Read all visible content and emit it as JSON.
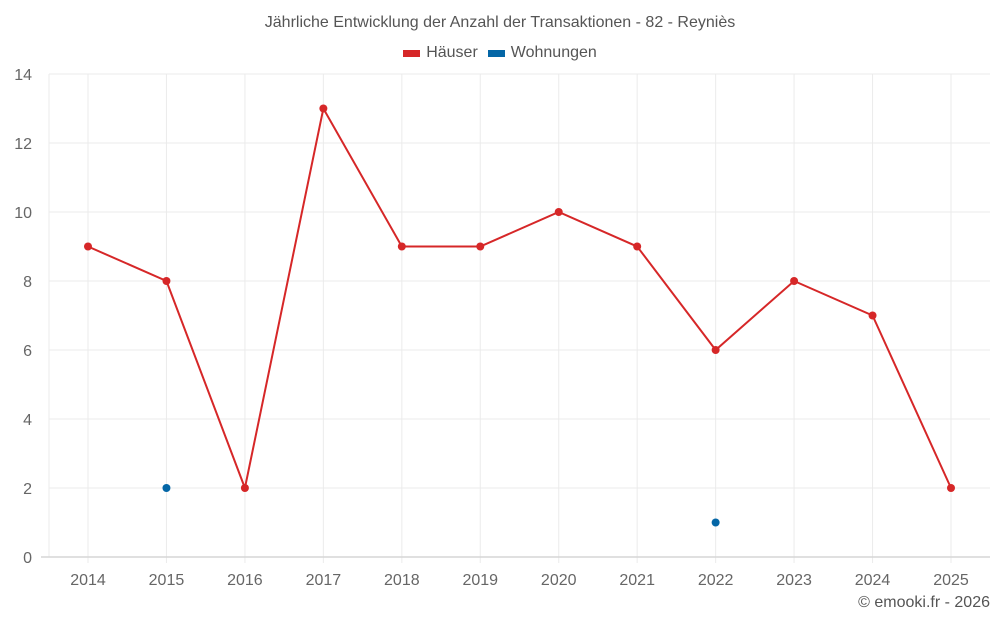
{
  "chart_data": {
    "type": "line",
    "title": "Jährliche Entwicklung der Anzahl der Transaktionen - 82 - Reyniès",
    "xlabel": "",
    "ylabel": "",
    "categories": [
      "2014",
      "2015",
      "2016",
      "2017",
      "2018",
      "2019",
      "2020",
      "2021",
      "2022",
      "2023",
      "2024",
      "2025"
    ],
    "series": [
      {
        "name": "Häuser",
        "color": "#d62728",
        "values": [
          9,
          8,
          2,
          13,
          9,
          9,
          10,
          9,
          6,
          8,
          7,
          2
        ]
      },
      {
        "name": "Wohnungen",
        "color": "#0466a6",
        "values": [
          null,
          2,
          null,
          null,
          null,
          null,
          null,
          null,
          1,
          null,
          null,
          null
        ]
      }
    ],
    "ylim": [
      0,
      14
    ],
    "yticks": [
      0,
      2,
      4,
      6,
      8,
      10,
      12,
      14
    ],
    "grid": true,
    "legend_position": "top-center"
  },
  "legend": {
    "items": [
      {
        "label": "Häuser",
        "color": "#d62728"
      },
      {
        "label": "Wohnungen",
        "color": "#0466a6"
      }
    ]
  },
  "credit": "© emooki.fr - 2026"
}
